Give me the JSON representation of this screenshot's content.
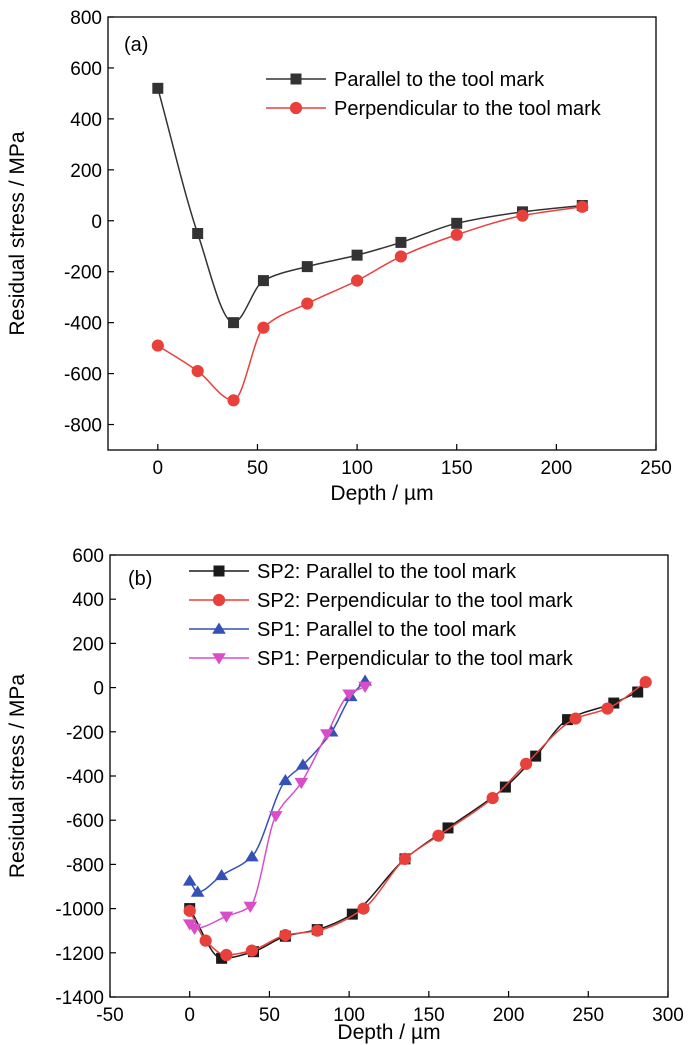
{
  "chart_data": [
    {
      "type": "line",
      "panel_label": "(a)",
      "xlabel": "Depth / µm",
      "ylabel": "Residual stress / MPa",
      "xlim": [
        -25,
        250
      ],
      "ylim": [
        -900,
        800
      ],
      "xticks": [
        0,
        50,
        100,
        150,
        200,
        250
      ],
      "yticks": [
        -800,
        -600,
        -400,
        -200,
        0,
        200,
        400,
        600,
        800
      ],
      "grid": false,
      "legend_position": "top-right",
      "series": [
        {
          "name": "Parallel to the tool mark",
          "color": "#333333",
          "marker": "square",
          "x": [
            0,
            20,
            38,
            53,
            75,
            100,
            122,
            150,
            183,
            213
          ],
          "y": [
            520,
            -50,
            -400,
            -235,
            -180,
            -135,
            -85,
            -10,
            35,
            60
          ]
        },
        {
          "name": "Perpendicular to the tool mark",
          "color": "#e8403b",
          "marker": "circle",
          "x": [
            0,
            20,
            38,
            53,
            75,
            100,
            122,
            150,
            183,
            213
          ],
          "y": [
            -490,
            -590,
            -705,
            -420,
            -325,
            -235,
            -140,
            -55,
            20,
            55
          ]
        }
      ]
    },
    {
      "type": "line",
      "panel_label": "(b)",
      "xlabel": "Depth / µm",
      "ylabel": "Residual stress / MPa",
      "xlim": [
        -50,
        300
      ],
      "ylim": [
        -1400,
        600
      ],
      "xticks": [
        -50,
        0,
        50,
        100,
        150,
        200,
        250,
        300
      ],
      "yticks": [
        -1400,
        -1200,
        -1000,
        -800,
        -600,
        -400,
        -200,
        0,
        200,
        400,
        600
      ],
      "grid": false,
      "legend_position": "top-center",
      "series": [
        {
          "name": "SP2: Parallel to the tool mark",
          "color": "#1a1a1a",
          "marker": "square",
          "x": [
            0,
            20,
            40,
            60,
            80,
            102,
            135,
            162,
            198,
            217,
            237,
            266,
            281
          ],
          "y": [
            -1000,
            -1225,
            -1195,
            -1125,
            -1095,
            -1025,
            -775,
            -635,
            -450,
            -310,
            -145,
            -70,
            -20
          ]
        },
        {
          "name": "SP2: Perpendicular to the tool mark",
          "color": "#e8403b",
          "marker": "circle",
          "x": [
            0,
            10,
            23,
            39,
            60,
            80,
            109,
            135,
            156,
            190,
            211,
            242,
            262,
            286
          ],
          "y": [
            -1010,
            -1145,
            -1210,
            -1190,
            -1120,
            -1100,
            -1000,
            -775,
            -670,
            -500,
            -345,
            -140,
            -95,
            25
          ]
        },
        {
          "name": "SP1: Parallel to the tool mark",
          "color": "#3451b5",
          "marker": "triangle-up",
          "x": [
            0,
            5,
            20,
            39,
            60,
            71,
            89,
            101,
            110
          ],
          "y": [
            -875,
            -925,
            -850,
            -765,
            -420,
            -350,
            -200,
            -40,
            30
          ]
        },
        {
          "name": "SP1: Perpendicular to the tool mark",
          "color": "#d94ec8",
          "marker": "triangle-down",
          "x": [
            0,
            3,
            23,
            38,
            54,
            70,
            86,
            100,
            110
          ],
          "y": [
            -1070,
            -1090,
            -1035,
            -990,
            -580,
            -430,
            -210,
            -30,
            5
          ]
        }
      ]
    }
  ]
}
